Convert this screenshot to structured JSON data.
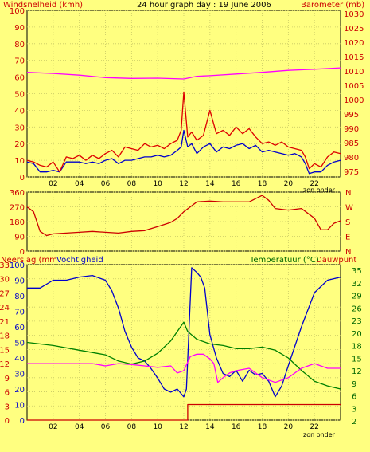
{
  "page": {
    "title": "24 hour graph day : 19 June 2006",
    "background": "#ffff80",
    "grid_color": "#c8c864",
    "axis_text_color": "#000000"
  },
  "colors": {
    "wind": "#0000cc",
    "gust": "#dd0000",
    "barometer": "#ff00ff",
    "direction": "#cc0000",
    "rain": "#cc0000",
    "humidity": "#0000cc",
    "temperature": "#008000",
    "dewpoint": "#ff00ff",
    "red_label": "#cc0000",
    "green_label": "#006600"
  },
  "panel1": {
    "left_label": "Windsnelheid (kmh)",
    "right_label": "Barometer (mb)",
    "xlabel": "zon onder",
    "left_ticks": [
      "100",
      "90",
      "80",
      "70",
      "60",
      "50",
      "40",
      "30",
      "20",
      "10",
      "0"
    ],
    "right_ticks": [
      "1030",
      "1025",
      "1020",
      "1015",
      "1010",
      "1005",
      "1000",
      "995",
      "990",
      "985",
      "980",
      "975"
    ],
    "x_ticks": [
      "02",
      "04",
      "06",
      "08",
      "10",
      "12",
      "14",
      "16",
      "18",
      "20",
      "22"
    ]
  },
  "panel2": {
    "left_ticks": [
      "360",
      "270",
      "180",
      "90",
      "0"
    ],
    "compass": [
      "N",
      "W",
      "S",
      "E",
      "N"
    ]
  },
  "panel3": {
    "left_label": "Neerslag (mm",
    "mid_label": "Vochtigheid",
    "right_label": "Temperatuur (°C)",
    "right_label2": "Dauwpunt",
    "xlabel": "zon onder",
    "left_ticks": [
      "100",
      "90",
      "80",
      "70",
      "60",
      "50",
      "40",
      "30",
      "20",
      "10",
      "0"
    ],
    "left_ticks2": [
      "33",
      "30",
      "27",
      "24",
      "21",
      "18",
      "15",
      "12",
      "9",
      "6",
      "3",
      "0"
    ],
    "right_ticks": [
      "35",
      "32",
      "29",
      "26",
      "23",
      "20",
      "18",
      "15",
      "12",
      "9",
      "6",
      "3",
      "2"
    ],
    "x_ticks": [
      "02",
      "04",
      "06",
      "08",
      "10",
      "12",
      "14",
      "16",
      "18",
      "20",
      "22"
    ]
  },
  "chart_data": [
    {
      "type": "line",
      "title": "24 hour graph day : 19 June 2006",
      "xlabel": "zon onder",
      "ylabel": "Windsnelheid (kmh)",
      "y2label": "Barometer (mb)",
      "xlim": [
        0,
        24
      ],
      "ylim": [
        0,
        100
      ],
      "y2lim": [
        972.5,
        1032.5
      ],
      "series": [
        {
          "axis": "left",
          "x": [
            0,
            0.5,
            1,
            1.5,
            2,
            2.5,
            3,
            3.5,
            4,
            4.5,
            5,
            5.5,
            6,
            6.5,
            7,
            7.5,
            8,
            8.5,
            9,
            9.5,
            10,
            10.5,
            11,
            11.5,
            11.8,
            12,
            12.3,
            12.6,
            13,
            13.5,
            14,
            14.5,
            15,
            15.5,
            16,
            16.5,
            17,
            17.5,
            18,
            18.5,
            19,
            19.5,
            20,
            20.5,
            21,
            21.3,
            21.6,
            22,
            22.5,
            23,
            23.5,
            24
          ],
          "values": [
            9,
            8,
            3,
            3,
            4,
            3,
            9,
            9,
            9,
            8,
            9,
            8,
            10,
            11,
            8,
            10,
            10,
            11,
            12,
            12,
            13,
            12,
            13,
            16,
            18,
            28,
            18,
            20,
            14,
            18,
            20,
            15,
            18,
            17,
            19,
            20,
            17,
            19,
            15,
            16,
            15,
            14,
            13,
            14,
            12,
            8,
            2,
            3,
            3,
            7,
            9,
            10
          ]
        },
        {
          "axis": "left",
          "x": [
            0,
            0.5,
            1,
            1.5,
            2,
            2.5,
            3,
            3.5,
            4,
            4.5,
            5,
            5.5,
            6,
            6.5,
            7,
            7.5,
            8,
            8.5,
            9,
            9.5,
            10,
            10.5,
            11,
            11.5,
            11.8,
            12,
            12.3,
            12.6,
            13,
            13.5,
            14,
            14.5,
            15,
            15.5,
            16,
            16.5,
            17,
            17.5,
            18,
            18.5,
            19,
            19.5,
            20,
            20.5,
            21,
            21.3,
            21.6,
            22,
            22.5,
            23,
            23.5,
            24
          ],
          "values": [
            10,
            9,
            7,
            6,
            9,
            3,
            12,
            11,
            13,
            10,
            13,
            11,
            14,
            16,
            12,
            18,
            17,
            16,
            20,
            18,
            19,
            17,
            20,
            22,
            28,
            51,
            24,
            27,
            22,
            25,
            40,
            26,
            28,
            25,
            30,
            26,
            29,
            24,
            20,
            21,
            19,
            21,
            18,
            17,
            16,
            12,
            5,
            8,
            6,
            12,
            15,
            14
          ]
        },
        {
          "axis": "right",
          "x": [
            0,
            2,
            4,
            6,
            8,
            10,
            12,
            13,
            14,
            16,
            18,
            20,
            22,
            24
          ],
          "values": [
            1010.2,
            1009.8,
            1009.2,
            1008.3,
            1008.0,
            1008.1,
            1007.8,
            1008.8,
            1009.0,
            1009.6,
            1010.2,
            1010.9,
            1011.3,
            1011.8
          ]
        }
      ]
    },
    {
      "type": "line",
      "ylabel": "",
      "xlim": [
        0,
        24
      ],
      "ylim": [
        0,
        360
      ],
      "series": [
        {
          "x": [
            0,
            0.5,
            1,
            1.5,
            2,
            3,
            4,
            5,
            6,
            7,
            8,
            9,
            10,
            11,
            11.5,
            12,
            13,
            14,
            15,
            16,
            17,
            17.5,
            18,
            18.5,
            19,
            20,
            21,
            21.5,
            22,
            22.5,
            23,
            23.5,
            24
          ],
          "values": [
            270,
            240,
            120,
            95,
            105,
            110,
            115,
            120,
            115,
            110,
            120,
            125,
            150,
            175,
            200,
            240,
            300,
            305,
            300,
            300,
            300,
            320,
            340,
            310,
            260,
            250,
            260,
            230,
            200,
            130,
            130,
            170,
            185
          ]
        }
      ]
    },
    {
      "type": "line",
      "ylabel": "Neerslag (mm / Vochtigheid",
      "y2label": "Temperatuur (°C) / Dauwpunt",
      "xlim": [
        0,
        24
      ],
      "ylim": [
        0,
        100
      ],
      "y2lim": [
        2,
        35
      ],
      "series": [
        {
          "axis": "left",
          "x": [
            0,
            1,
            2,
            3,
            4,
            5,
            6,
            6.5,
            7,
            7.5,
            8,
            8.5,
            9,
            9.5,
            10,
            10.5,
            11,
            11.5,
            12,
            12.2,
            12.6,
            13,
            13.3,
            13.6,
            14,
            14.5,
            15,
            15.5,
            16,
            16.5,
            17,
            17.5,
            18,
            18.5,
            19,
            19.5,
            20,
            21,
            22,
            23,
            24
          ],
          "values": [
            85,
            85,
            90,
            90,
            92,
            93,
            90,
            83,
            72,
            57,
            47,
            40,
            38,
            33,
            27,
            20,
            18,
            20,
            15,
            20,
            98,
            95,
            92,
            85,
            55,
            40,
            30,
            28,
            32,
            25,
            32,
            29,
            30,
            25,
            15,
            22,
            35,
            60,
            82,
            90,
            92
          ]
        },
        {
          "axis": "left",
          "x": [
            0,
            2,
            4,
            6,
            7,
            8,
            9,
            10,
            11,
            11.5,
            12,
            12.3,
            13,
            14,
            15,
            16,
            17,
            18,
            19,
            20,
            21,
            22,
            23,
            24
          ],
          "values": [
            50,
            48,
            45,
            42,
            38,
            36,
            38,
            43,
            51,
            57,
            63,
            57,
            52,
            49,
            48,
            46,
            46,
            47,
            45,
            40,
            32,
            25,
            22,
            20
          ]
        },
        {
          "axis": "right",
          "x": [
            0,
            1,
            2,
            3,
            4,
            5,
            6,
            7,
            8,
            9,
            10,
            11,
            11.5,
            12,
            12.5,
            13,
            13.5,
            14,
            14.3,
            14.6,
            15,
            15.5,
            16,
            17,
            18,
            19,
            20,
            21,
            22,
            23,
            24
          ],
          "values": [
            14,
            14,
            14,
            14,
            14,
            14,
            13.5,
            14,
            13.8,
            13.5,
            13.2,
            13.5,
            12,
            12.5,
            15.5,
            16,
            16,
            15,
            14,
            10,
            11,
            12,
            12.5,
            13,
            11,
            10,
            11,
            13,
            14,
            13,
            13
          ]
        },
        {
          "axis": "left",
          "x": [
            0,
            12.3,
            12.3,
            24
          ],
          "values": [
            0,
            0,
            10,
            10
          ]
        }
      ]
    }
  ]
}
